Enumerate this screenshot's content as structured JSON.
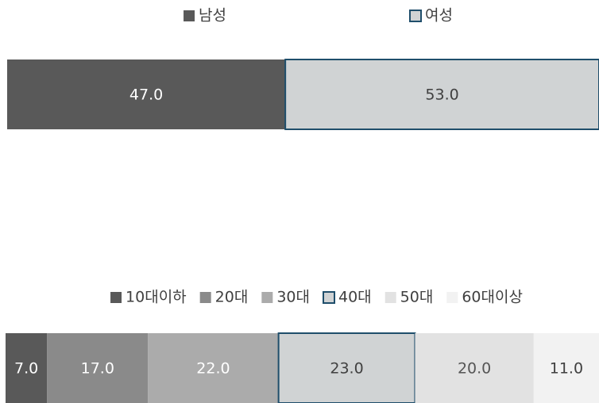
{
  "chart_data": [
    {
      "type": "bar",
      "orientation": "horizontal",
      "stacked": true,
      "xlim": [
        0,
        100
      ],
      "series": [
        {
          "name": "남성",
          "color": "#595959",
          "label_color": "#ffffff",
          "values": [
            47
          ],
          "value_labels": [
            "47.0"
          ]
        },
        {
          "name": "여성",
          "color": "#d0d3d4",
          "border": "#1f4e6b",
          "label_color": "#404040",
          "values": [
            53
          ],
          "value_labels": [
            "53.0"
          ]
        }
      ]
    },
    {
      "type": "bar",
      "orientation": "horizontal",
      "stacked": true,
      "xlim": [
        0,
        100
      ],
      "series": [
        {
          "name": "10대이하",
          "color": "#595959",
          "label_color": "#ffffff",
          "values": [
            7
          ],
          "value_labels": [
            "7.0"
          ]
        },
        {
          "name": "20대",
          "color": "#8a8a8a",
          "label_color": "#ffffff",
          "values": [
            17
          ],
          "value_labels": [
            "17.0"
          ]
        },
        {
          "name": "30대",
          "color": "#ababab",
          "label_color": "#ffffff",
          "values": [
            22
          ],
          "value_labels": [
            "22.0"
          ]
        },
        {
          "name": "40대",
          "color": "#d0d3d4",
          "border": "#1f4e6b",
          "label_color": "#404040",
          "values": [
            23
          ],
          "value_labels": [
            "23.0"
          ]
        },
        {
          "name": "50대",
          "color": "#e2e2e2",
          "label_color": "#555555",
          "values": [
            20
          ],
          "value_labels": [
            "20.0"
          ]
        },
        {
          "name": "60대이상",
          "color": "#f2f2f2",
          "label_color": "#404040",
          "values": [
            11
          ],
          "value_labels": [
            "11.0"
          ]
        }
      ]
    }
  ]
}
